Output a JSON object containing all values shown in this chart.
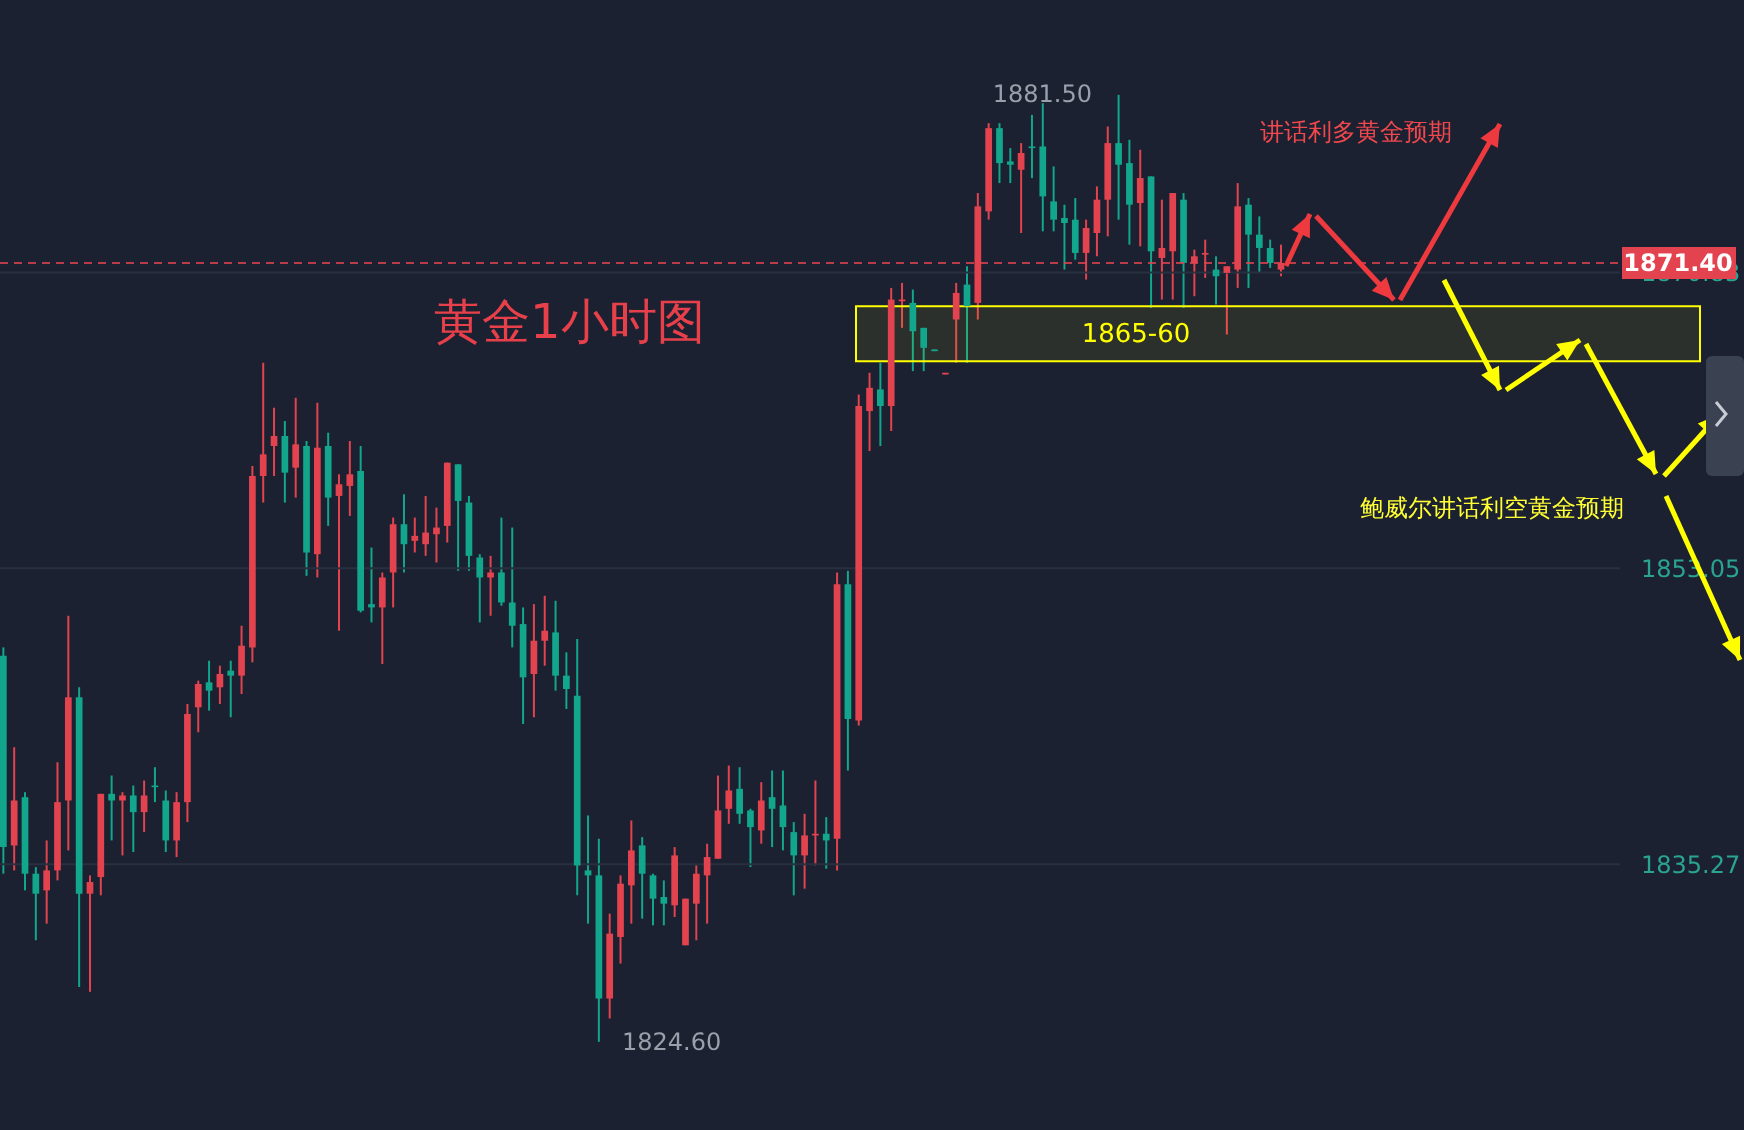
{
  "chart_data": {
    "type": "candlestick",
    "title": "黄金1小时图",
    "categories": [
      null,
      null,
      null,
      null,
      null,
      null,
      null,
      null,
      null,
      null,
      null,
      null,
      null,
      null,
      null,
      null,
      null,
      null,
      null,
      null,
      null,
      null,
      null,
      null,
      null,
      null,
      null,
      null,
      null,
      null,
      null,
      null,
      null,
      null,
      null,
      null,
      null,
      null,
      null,
      null,
      null,
      null,
      null,
      null,
      null,
      null,
      null,
      null,
      null,
      null,
      null,
      null,
      null,
      null,
      null,
      null,
      null,
      null,
      null,
      null,
      null,
      null,
      null,
      null,
      null,
      null,
      null,
      null,
      null,
      null,
      null,
      null,
      null,
      null,
      null,
      null,
      null,
      null,
      null,
      null,
      null,
      null,
      null,
      null,
      null,
      null,
      null,
      null,
      null,
      null,
      null,
      null,
      null,
      null,
      null,
      null,
      null,
      null,
      null,
      null,
      null,
      null,
      null,
      null,
      null,
      null,
      null,
      null,
      null,
      null,
      null,
      null,
      null,
      null,
      null,
      null,
      null,
      null,
      null,
      null,
      null,
      null,
      null,
      null,
      null,
      null,
      null,
      null,
      null,
      null,
      null,
      null,
      null,
      null,
      null,
      null,
      null,
      null,
      null,
      null,
      null,
      null,
      null,
      null,
      null,
      null,
      null,
      null,
      null,
      null
    ],
    "ohlc": [
      [
        1847.8,
        1848.3,
        1834.7,
        1836.3
      ],
      [
        1836.4,
        1842.3,
        1834.9,
        1839.1
      ],
      [
        1839.3,
        1839.6,
        1833.7,
        1834.7
      ],
      [
        1834.7,
        1835.1,
        1830.7,
        1833.5
      ],
      [
        1833.7,
        1836.7,
        1831.7,
        1834.9
      ],
      [
        1834.9,
        1841.4,
        1834.3,
        1839.0
      ],
      [
        1839.1,
        1850.2,
        1836.1,
        1845.3
      ],
      [
        1845.3,
        1845.9,
        1827.9,
        1833.5
      ],
      [
        1833.5,
        1834.6,
        1827.6,
        1834.2
      ],
      [
        1834.5,
        1839.5,
        1833.4,
        1839.5
      ],
      [
        1839.5,
        1840.6,
        1836.7,
        1839.1
      ],
      [
        1839.1,
        1839.6,
        1835.8,
        1839.4
      ],
      [
        1839.4,
        1840.0,
        1836.0,
        1838.4
      ],
      [
        1838.4,
        1840.3,
        1837.2,
        1839.4
      ],
      [
        1840.0,
        1841.1,
        1839.0,
        1839.9
      ],
      [
        1839.1,
        1839.7,
        1836.0,
        1836.7
      ],
      [
        1836.7,
        1839.6,
        1835.7,
        1839.0
      ],
      [
        1839.0,
        1844.9,
        1837.8,
        1844.3
      ],
      [
        1844.7,
        1846.3,
        1843.2,
        1846.1
      ],
      [
        1846.2,
        1847.5,
        1844.5,
        1845.7
      ],
      [
        1845.9,
        1847.2,
        1844.9,
        1846.7
      ],
      [
        1846.9,
        1847.5,
        1844.1,
        1846.6
      ],
      [
        1846.6,
        1849.6,
        1845.5,
        1848.4
      ],
      [
        1848.3,
        1859.2,
        1847.4,
        1858.6
      ],
      [
        1858.6,
        1865.4,
        1857.0,
        1859.9
      ],
      [
        1860.4,
        1862.7,
        1858.6,
        1861.0
      ],
      [
        1861.0,
        1861.9,
        1857.0,
        1858.8
      ],
      [
        1859.1,
        1863.3,
        1857.3,
        1860.5
      ],
      [
        1860.4,
        1860.7,
        1852.6,
        1854.0
      ],
      [
        1853.9,
        1863.0,
        1852.5,
        1860.3
      ],
      [
        1860.4,
        1861.2,
        1855.6,
        1857.3
      ],
      [
        1857.4,
        1858.7,
        1849.3,
        1858.1
      ],
      [
        1858.0,
        1860.7,
        1856.2,
        1858.7
      ],
      [
        1858.9,
        1860.4,
        1850.4,
        1850.5
      ],
      [
        1850.9,
        1854.3,
        1849.8,
        1850.7
      ],
      [
        1850.7,
        1852.8,
        1847.3,
        1852.5
      ],
      [
        1852.8,
        1856.1,
        1850.7,
        1855.7
      ],
      [
        1855.7,
        1857.5,
        1852.8,
        1854.5
      ],
      [
        1854.7,
        1856.1,
        1854.0,
        1855.0
      ],
      [
        1854.5,
        1857.4,
        1853.8,
        1855.2
      ],
      [
        1855.1,
        1856.7,
        1853.4,
        1855.5
      ],
      [
        1855.6,
        1859.4,
        1854.6,
        1859.4
      ],
      [
        1859.3,
        1859.3,
        1852.9,
        1857.1
      ],
      [
        1857.0,
        1857.4,
        1852.9,
        1853.8
      ],
      [
        1853.7,
        1853.9,
        1849.8,
        1852.5
      ],
      [
        1852.5,
        1853.8,
        1850.2,
        1852.8
      ],
      [
        1852.8,
        1856.1,
        1850.8,
        1851.0
      ],
      [
        1851.0,
        1855.5,
        1848.3,
        1849.6
      ],
      [
        1849.7,
        1850.7,
        1843.7,
        1846.5
      ],
      [
        1846.7,
        1850.9,
        1844.1,
        1848.7
      ],
      [
        1848.7,
        1851.4,
        1847.2,
        1849.3
      ],
      [
        1849.2,
        1851.1,
        1845.7,
        1846.6
      ],
      [
        1846.6,
        1848.0,
        1844.6,
        1845.8
      ],
      [
        1845.4,
        1848.8,
        1833.4,
        1835.2
      ],
      [
        1834.9,
        1838.2,
        1831.7,
        1834.6
      ],
      [
        1834.6,
        1836.8,
        1824.6,
        1827.2
      ],
      [
        1827.2,
        1832.3,
        1826.0,
        1831.1
      ],
      [
        1830.9,
        1834.6,
        1829.3,
        1834.1
      ],
      [
        1834.0,
        1837.9,
        1831.7,
        1836.1
      ],
      [
        1836.4,
        1836.9,
        1832.0,
        1834.7
      ],
      [
        1834.6,
        1834.7,
        1831.6,
        1833.2
      ],
      [
        1833.3,
        1834.3,
        1831.6,
        1832.9
      ],
      [
        1832.8,
        1836.3,
        1832.1,
        1835.8
      ],
      [
        1830.4,
        1833.2,
        1830.4,
        1833.2
      ],
      [
        1832.9,
        1835.2,
        1830.7,
        1834.7
      ],
      [
        1834.6,
        1836.5,
        1831.7,
        1835.7
      ],
      [
        1835.6,
        1840.6,
        1835.6,
        1838.5
      ],
      [
        1838.6,
        1841.2,
        1837.7,
        1839.7
      ],
      [
        1839.8,
        1841.1,
        1837.7,
        1838.3
      ],
      [
        1838.5,
        1838.6,
        1835.1,
        1837.5
      ],
      [
        1837.3,
        1840.2,
        1836.5,
        1839.1
      ],
      [
        1839.3,
        1840.9,
        1836.3,
        1838.6
      ],
      [
        1838.8,
        1840.9,
        1836.1,
        1837.5
      ],
      [
        1837.2,
        1837.8,
        1833.4,
        1835.8
      ],
      [
        1835.8,
        1838.3,
        1833.8,
        1837.0
      ],
      [
        1837.0,
        1840.3,
        1835.2,
        1837.1
      ],
      [
        1837.1,
        1838.1,
        1835.0,
        1836.7
      ],
      [
        1836.8,
        1852.8,
        1834.9,
        1852.1
      ],
      [
        1852.1,
        1852.9,
        1840.9,
        1844.0
      ],
      [
        1843.9,
        1863.5,
        1843.6,
        1862.8
      ],
      [
        1862.5,
        1864.8,
        1860.1,
        1863.9
      ],
      [
        1863.8,
        1865.4,
        1860.4,
        1862.8
      ],
      [
        1862.8,
        1869.9,
        1861.3,
        1869.2
      ],
      [
        1869.1,
        1870.2,
        1867.5,
        1869.2
      ],
      [
        1869.0,
        1869.8,
        1864.9,
        1867.3
      ],
      [
        1867.5,
        1867.5,
        1864.9,
        1866.3
      ],
      [
        1866.2,
        1866.2,
        1866.1,
        1866.1
      ],
      [
        1864.7,
        1864.8,
        1864.7,
        1864.8
      ],
      [
        1868.0,
        1870.2,
        1865.4,
        1869.6
      ],
      [
        1870.1,
        1871.2,
        1865.4,
        1868.8
      ],
      [
        1869.0,
        1875.6,
        1868.0,
        1874.8
      ],
      [
        1874.5,
        1879.8,
        1874.0,
        1879.5
      ],
      [
        1879.5,
        1879.8,
        1876.2,
        1877.4
      ],
      [
        1877.5,
        1878.3,
        1876.2,
        1877.3
      ],
      [
        1877.0,
        1878.6,
        1873.2,
        1878.0
      ],
      [
        1878.4,
        1880.3,
        1876.5,
        1878.3
      ],
      [
        1878.4,
        1881.0,
        1873.3,
        1875.4
      ],
      [
        1875.1,
        1877.2,
        1873.3,
        1874.0
      ],
      [
        1874.1,
        1874.9,
        1871.0,
        1873.8
      ],
      [
        1874.0,
        1875.3,
        1871.6,
        1872.0
      ],
      [
        1872.0,
        1874.0,
        1870.4,
        1873.5
      ],
      [
        1873.2,
        1876.0,
        1871.8,
        1875.2
      ],
      [
        1875.2,
        1879.6,
        1873.0,
        1878.6
      ],
      [
        1878.6,
        1881.5,
        1874.0,
        1877.3
      ],
      [
        1877.4,
        1878.8,
        1872.5,
        1874.9
      ],
      [
        1875.0,
        1878.2,
        1872.4,
        1876.5
      ],
      [
        1876.6,
        1876.6,
        1868.7,
        1872.1
      ],
      [
        1871.7,
        1875.2,
        1869.2,
        1872.3
      ],
      [
        1872.1,
        1875.6,
        1869.2,
        1875.6
      ],
      [
        1875.2,
        1875.6,
        1868.7,
        1871.4
      ],
      [
        1871.4,
        1872.2,
        1869.4,
        1871.8
      ],
      [
        1871.9,
        1872.8,
        1870.5,
        1872.0
      ],
      [
        1871.0,
        1871.8,
        1868.9,
        1870.6
      ],
      [
        1870.8,
        1871.2,
        1867.1,
        1871.2
      ],
      [
        1871.0,
        1876.2,
        1869.9,
        1874.8
      ],
      [
        1874.9,
        1875.3,
        1869.9,
        1873.1
      ],
      [
        1873.1,
        1874.2,
        1870.8,
        1872.3
      ],
      [
        1872.3,
        1872.8,
        1871.1,
        1871.4
      ],
      [
        1871.0,
        1872.5,
        1870.6,
        1871.4
      ],
      null,
      null,
      null,
      null,
      null,
      null,
      null,
      null,
      null,
      null,
      null,
      null,
      null,
      null,
      null,
      null,
      null,
      null,
      null,
      null,
      null,
      null,
      null,
      null,
      null,
      null,
      null,
      null,
      null,
      null,
      null
    ],
    "ylim": [
      1819.3,
      1887.2
    ],
    "yticks": [
      1835.27,
      1853.05,
      1870.83
    ],
    "grid": "y",
    "tick_labels": "y",
    "ref_lines": [
      {
        "axis": "y",
        "value": 1871.4,
        "label": "1871.40",
        "color": "#e2434f",
        "line_style": "dashed"
      }
    ],
    "bands": [
      {
        "axis": "y",
        "from": 1865.5,
        "to": 1868.8,
        "label": "1865-60",
        "color": "#ffff00"
      }
    ],
    "annotations": [
      "1881.50",
      "1824.60",
      "讲话利多黄金预期",
      "鲍威尔讲话利空黄金预期"
    ]
  }
}
